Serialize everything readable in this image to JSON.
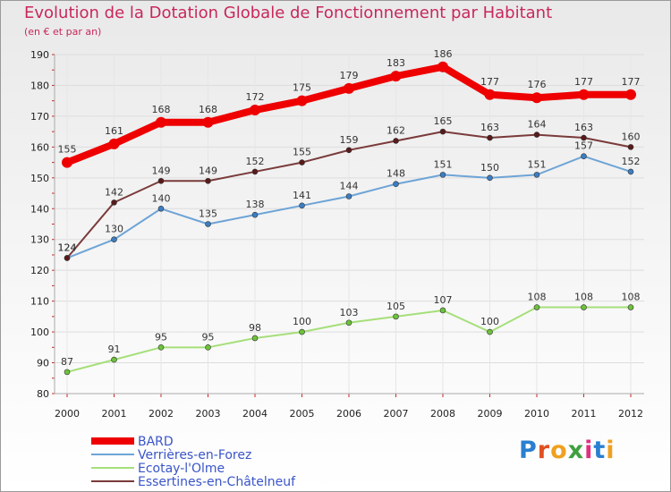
{
  "title": "Evolution de la Dotation Globale de Fonctionnement par Habitant",
  "subtitle": "(en € et par an)",
  "logo": {
    "text": "Proxiti",
    "colors": [
      "#2a7fd0",
      "#e05020",
      "#f0a020",
      "#40a040",
      "#e03080",
      "#2a7fd0",
      "#f0a020"
    ]
  },
  "chart_data": {
    "type": "line",
    "x": [
      "2000",
      "2001",
      "2002",
      "2003",
      "2004",
      "2005",
      "2006",
      "2007",
      "2008",
      "2009",
      "2010",
      "2011",
      "2012"
    ],
    "ylim": [
      80,
      190
    ],
    "yticks": [
      "80",
      "90",
      "100",
      "110",
      "120",
      "130",
      "140",
      "150",
      "160",
      "170",
      "180",
      "190"
    ],
    "grid": true,
    "legend_position": "bottom-left",
    "series": [
      {
        "name": "BARD",
        "color": "#ee0000",
        "values": [
          155,
          161,
          168,
          168,
          172,
          175,
          179,
          183,
          186,
          177,
          176,
          177,
          177
        ],
        "labels": [
          "155",
          "161",
          "168",
          "168",
          "172",
          "175",
          "179",
          "183",
          "186",
          "177",
          "176",
          "177",
          "177"
        ]
      },
      {
        "name": "Verrières-en-Forez",
        "color": "#6ea4d6",
        "values": [
          124,
          130,
          140,
          135,
          138,
          141,
          144,
          148,
          151,
          150,
          151,
          157,
          152
        ],
        "labels": [
          "124",
          "130",
          "140",
          "135",
          "138",
          "141",
          "144",
          "148",
          "151",
          "150",
          "151",
          "157",
          "152"
        ]
      },
      {
        "name": "Ecotay-l'Olme",
        "color": "#a6df7a",
        "values": [
          87,
          91,
          95,
          95,
          98,
          100,
          103,
          105,
          107,
          100,
          108,
          108,
          108
        ],
        "labels": [
          "87",
          "91",
          "95",
          "95",
          "98",
          "100",
          "103",
          "105",
          "107",
          "100",
          "108",
          "108",
          "108"
        ]
      },
      {
        "name": "Essertines-en-Châtelneuf",
        "color": "#7a3a3a",
        "values": [
          124,
          142,
          149,
          149,
          152,
          155,
          159,
          162,
          165,
          163,
          164,
          163,
          160
        ],
        "labels": [
          "124",
          "142",
          "149",
          "149",
          "152",
          "155",
          "159",
          "162",
          "165",
          "163",
          "164",
          "163",
          "160"
        ]
      }
    ]
  }
}
